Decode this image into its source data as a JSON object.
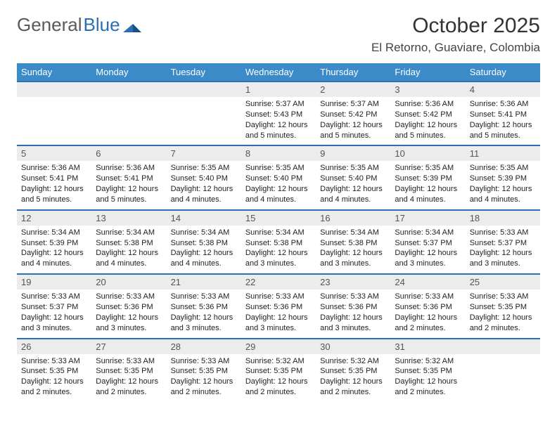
{
  "logo": {
    "word1": "General",
    "word2": "Blue"
  },
  "title": "October 2025",
  "location": "El Retorno, Guaviare, Colombia",
  "colors": {
    "header_bg": "#3b8bc9",
    "border": "#2a6fb5",
    "dayband": "#ececec",
    "logo_gray": "#5a5a5a",
    "logo_blue": "#2a6fb5"
  },
  "weekdays": [
    "Sunday",
    "Monday",
    "Tuesday",
    "Wednesday",
    "Thursday",
    "Friday",
    "Saturday"
  ],
  "weeks": [
    [
      null,
      null,
      null,
      {
        "n": "1",
        "sr": "Sunrise: 5:37 AM",
        "ss": "Sunset: 5:43 PM",
        "dl": "Daylight: 12 hours and 5 minutes."
      },
      {
        "n": "2",
        "sr": "Sunrise: 5:37 AM",
        "ss": "Sunset: 5:42 PM",
        "dl": "Daylight: 12 hours and 5 minutes."
      },
      {
        "n": "3",
        "sr": "Sunrise: 5:36 AM",
        "ss": "Sunset: 5:42 PM",
        "dl": "Daylight: 12 hours and 5 minutes."
      },
      {
        "n": "4",
        "sr": "Sunrise: 5:36 AM",
        "ss": "Sunset: 5:41 PM",
        "dl": "Daylight: 12 hours and 5 minutes."
      }
    ],
    [
      {
        "n": "5",
        "sr": "Sunrise: 5:36 AM",
        "ss": "Sunset: 5:41 PM",
        "dl": "Daylight: 12 hours and 5 minutes."
      },
      {
        "n": "6",
        "sr": "Sunrise: 5:36 AM",
        "ss": "Sunset: 5:41 PM",
        "dl": "Daylight: 12 hours and 5 minutes."
      },
      {
        "n": "7",
        "sr": "Sunrise: 5:35 AM",
        "ss": "Sunset: 5:40 PM",
        "dl": "Daylight: 12 hours and 4 minutes."
      },
      {
        "n": "8",
        "sr": "Sunrise: 5:35 AM",
        "ss": "Sunset: 5:40 PM",
        "dl": "Daylight: 12 hours and 4 minutes."
      },
      {
        "n": "9",
        "sr": "Sunrise: 5:35 AM",
        "ss": "Sunset: 5:40 PM",
        "dl": "Daylight: 12 hours and 4 minutes."
      },
      {
        "n": "10",
        "sr": "Sunrise: 5:35 AM",
        "ss": "Sunset: 5:39 PM",
        "dl": "Daylight: 12 hours and 4 minutes."
      },
      {
        "n": "11",
        "sr": "Sunrise: 5:35 AM",
        "ss": "Sunset: 5:39 PM",
        "dl": "Daylight: 12 hours and 4 minutes."
      }
    ],
    [
      {
        "n": "12",
        "sr": "Sunrise: 5:34 AM",
        "ss": "Sunset: 5:39 PM",
        "dl": "Daylight: 12 hours and 4 minutes."
      },
      {
        "n": "13",
        "sr": "Sunrise: 5:34 AM",
        "ss": "Sunset: 5:38 PM",
        "dl": "Daylight: 12 hours and 4 minutes."
      },
      {
        "n": "14",
        "sr": "Sunrise: 5:34 AM",
        "ss": "Sunset: 5:38 PM",
        "dl": "Daylight: 12 hours and 4 minutes."
      },
      {
        "n": "15",
        "sr": "Sunrise: 5:34 AM",
        "ss": "Sunset: 5:38 PM",
        "dl": "Daylight: 12 hours and 3 minutes."
      },
      {
        "n": "16",
        "sr": "Sunrise: 5:34 AM",
        "ss": "Sunset: 5:38 PM",
        "dl": "Daylight: 12 hours and 3 minutes."
      },
      {
        "n": "17",
        "sr": "Sunrise: 5:34 AM",
        "ss": "Sunset: 5:37 PM",
        "dl": "Daylight: 12 hours and 3 minutes."
      },
      {
        "n": "18",
        "sr": "Sunrise: 5:33 AM",
        "ss": "Sunset: 5:37 PM",
        "dl": "Daylight: 12 hours and 3 minutes."
      }
    ],
    [
      {
        "n": "19",
        "sr": "Sunrise: 5:33 AM",
        "ss": "Sunset: 5:37 PM",
        "dl": "Daylight: 12 hours and 3 minutes."
      },
      {
        "n": "20",
        "sr": "Sunrise: 5:33 AM",
        "ss": "Sunset: 5:36 PM",
        "dl": "Daylight: 12 hours and 3 minutes."
      },
      {
        "n": "21",
        "sr": "Sunrise: 5:33 AM",
        "ss": "Sunset: 5:36 PM",
        "dl": "Daylight: 12 hours and 3 minutes."
      },
      {
        "n": "22",
        "sr": "Sunrise: 5:33 AM",
        "ss": "Sunset: 5:36 PM",
        "dl": "Daylight: 12 hours and 3 minutes."
      },
      {
        "n": "23",
        "sr": "Sunrise: 5:33 AM",
        "ss": "Sunset: 5:36 PM",
        "dl": "Daylight: 12 hours and 3 minutes."
      },
      {
        "n": "24",
        "sr": "Sunrise: 5:33 AM",
        "ss": "Sunset: 5:36 PM",
        "dl": "Daylight: 12 hours and 2 minutes."
      },
      {
        "n": "25",
        "sr": "Sunrise: 5:33 AM",
        "ss": "Sunset: 5:35 PM",
        "dl": "Daylight: 12 hours and 2 minutes."
      }
    ],
    [
      {
        "n": "26",
        "sr": "Sunrise: 5:33 AM",
        "ss": "Sunset: 5:35 PM",
        "dl": "Daylight: 12 hours and 2 minutes."
      },
      {
        "n": "27",
        "sr": "Sunrise: 5:33 AM",
        "ss": "Sunset: 5:35 PM",
        "dl": "Daylight: 12 hours and 2 minutes."
      },
      {
        "n": "28",
        "sr": "Sunrise: 5:33 AM",
        "ss": "Sunset: 5:35 PM",
        "dl": "Daylight: 12 hours and 2 minutes."
      },
      {
        "n": "29",
        "sr": "Sunrise: 5:32 AM",
        "ss": "Sunset: 5:35 PM",
        "dl": "Daylight: 12 hours and 2 minutes."
      },
      {
        "n": "30",
        "sr": "Sunrise: 5:32 AM",
        "ss": "Sunset: 5:35 PM",
        "dl": "Daylight: 12 hours and 2 minutes."
      },
      {
        "n": "31",
        "sr": "Sunrise: 5:32 AM",
        "ss": "Sunset: 5:35 PM",
        "dl": "Daylight: 12 hours and 2 minutes."
      },
      null
    ]
  ]
}
